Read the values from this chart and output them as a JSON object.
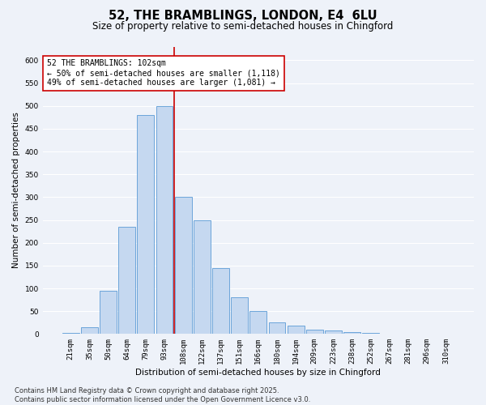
{
  "title": "52, THE BRAMBLINGS, LONDON, E4  6LU",
  "subtitle": "Size of property relative to semi-detached houses in Chingford",
  "xlabel": "Distribution of semi-detached houses by size in Chingford",
  "ylabel": "Number of semi-detached properties",
  "categories": [
    "21sqm",
    "35sqm",
    "50sqm",
    "64sqm",
    "79sqm",
    "93sqm",
    "108sqm",
    "122sqm",
    "137sqm",
    "151sqm",
    "166sqm",
    "180sqm",
    "194sqm",
    "209sqm",
    "223sqm",
    "238sqm",
    "252sqm",
    "267sqm",
    "281sqm",
    "296sqm",
    "310sqm"
  ],
  "values": [
    2,
    15,
    95,
    235,
    480,
    500,
    300,
    250,
    145,
    80,
    50,
    25,
    18,
    10,
    8,
    5,
    2,
    1,
    0,
    0,
    0
  ],
  "bar_color": "#c5d8f0",
  "bar_edge_color": "#5b9bd5",
  "vline_x_index": 6,
  "vline_color": "#cc0000",
  "annotation_text": "52 THE BRAMBLINGS: 102sqm\n← 50% of semi-detached houses are smaller (1,118)\n49% of semi-detached houses are larger (1,081) →",
  "annotation_box_color": "#ffffff",
  "annotation_box_edge_color": "#cc0000",
  "footnote": "Contains HM Land Registry data © Crown copyright and database right 2025.\nContains public sector information licensed under the Open Government Licence v3.0.",
  "ylim": [
    0,
    630
  ],
  "yticks": [
    0,
    50,
    100,
    150,
    200,
    250,
    300,
    350,
    400,
    450,
    500,
    550,
    600
  ],
  "background_color": "#eef2f9",
  "grid_color": "#ffffff",
  "title_fontsize": 10.5,
  "subtitle_fontsize": 8.5,
  "axis_label_fontsize": 7.5,
  "tick_fontsize": 6.5,
  "annotation_fontsize": 7,
  "footnote_fontsize": 6
}
